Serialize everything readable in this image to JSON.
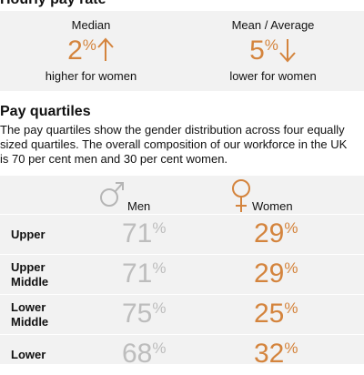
{
  "header": {
    "title": "Hourly pay rate"
  },
  "pay_rate": [
    {
      "label": "Median",
      "value": 2,
      "unit": "%",
      "caption": "higher for women"
    },
    {
      "label": "Mean / Average",
      "value": 5,
      "unit": "%",
      "caption": "lower for women"
    }
  ],
  "quartiles": {
    "title": "Pay quartiles",
    "description": "The pay quartiles show the gender distribution across four equally sized quartiles. The overall composition of our workforce in the UK is 70 per cent men and 30 per cent women.",
    "columns": [
      "Men",
      "Women"
    ],
    "unit": "%",
    "rows": [
      {
        "label": "Upper",
        "men": 71,
        "women": 29
      },
      {
        "label": "Upper Middle",
        "men": 71,
        "women": 29
      },
      {
        "label": "Lower Middle",
        "men": 75,
        "women": 25
      },
      {
        "label": "Lower",
        "men": 68,
        "women": 32
      }
    ]
  }
}
